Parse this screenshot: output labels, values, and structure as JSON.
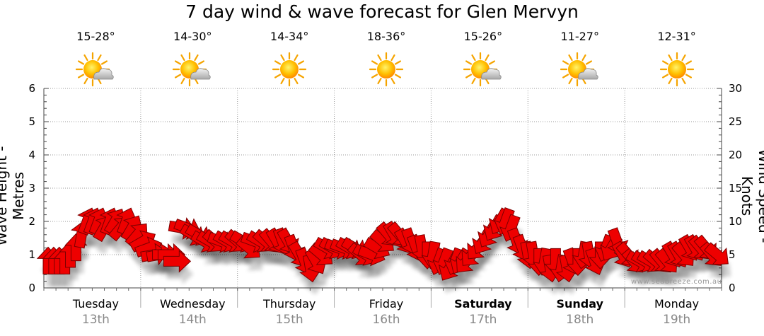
{
  "title": "7 day wind & wave forecast for Glen Mervyn",
  "watermark": "www.seabreeze.com.au",
  "axes": {
    "left_label": "Wave Height - Metres",
    "right_label": "Wind Speed - Knots",
    "left_ticks": [
      "0",
      "1",
      "2",
      "3",
      "4",
      "5",
      "6"
    ],
    "right_ticks": [
      "0",
      "5",
      "10",
      "15",
      "20",
      "25",
      "30"
    ]
  },
  "days": [
    {
      "name": "Tuesday",
      "date": "13th",
      "temp": "15-28°",
      "icon": "partly-cloudy-icon",
      "bold": false
    },
    {
      "name": "Wednesday",
      "date": "14th",
      "temp": "14-30°",
      "icon": "partly-cloudy-icon",
      "bold": false
    },
    {
      "name": "Thursday",
      "date": "15th",
      "temp": "14-34°",
      "icon": "sunny-icon",
      "bold": false
    },
    {
      "name": "Friday",
      "date": "16th",
      "temp": "18-36°",
      "icon": "sunny-icon",
      "bold": false
    },
    {
      "name": "Saturday",
      "date": "17th",
      "temp": "15-26°",
      "icon": "partly-cloudy-icon",
      "bold": true
    },
    {
      "name": "Sunday",
      "date": "18th",
      "temp": "11-27°",
      "icon": "partly-cloudy-icon",
      "bold": true
    },
    {
      "name": "Monday",
      "date": "19th",
      "temp": "12-31°",
      "icon": "sunny-icon",
      "bold": false
    }
  ],
  "colors": {
    "arrow": "#ee0000",
    "arrow_stroke": "#7a0000",
    "grid": "#999999",
    "axis": "#444444"
  },
  "chart_data": {
    "type": "line",
    "title": "7 day wind & wave forecast for Glen Mervyn",
    "ylabel": "Wave Height - Metres",
    "y2label": "Wind Speed - Knots",
    "ylim": [
      0,
      6
    ],
    "y2lim": [
      0,
      30
    ],
    "categories": [
      "Tuesday 13th",
      "Wednesday 14th",
      "Thursday 15th",
      "Friday 16th",
      "Saturday 17th",
      "Sunday 18th",
      "Monday 19th"
    ],
    "grid": true,
    "series": [
      {
        "wind_knots": [
          4,
          4,
          4,
          4,
          5,
          6,
          8,
          10,
          10,
          10,
          9,
          10,
          10,
          9,
          10,
          9,
          8,
          7,
          6,
          5,
          5,
          5,
          5,
          4,
          9,
          9,
          8,
          8,
          7,
          7,
          7,
          7,
          7,
          7,
          7,
          7,
          6,
          7,
          7,
          7,
          7,
          7,
          7,
          7,
          6,
          5,
          4,
          3,
          4,
          5,
          6,
          6,
          6,
          6,
          6,
          6,
          5,
          5,
          5,
          6,
          7,
          8,
          8,
          8,
          7,
          7,
          6,
          6,
          5,
          5,
          4,
          4,
          3,
          4,
          4,
          4,
          5,
          6,
          7,
          8,
          9,
          10,
          10,
          9,
          7,
          6,
          5,
          5,
          4,
          4,
          3,
          4,
          3,
          3,
          4,
          4,
          5,
          5,
          4,
          5,
          6,
          6,
          7,
          5,
          5,
          4,
          4,
          4,
          4,
          4,
          4,
          4,
          5,
          5,
          5,
          6,
          6,
          6,
          6,
          5,
          5
        ],
        "wind_direction_deg": [
          180,
          180,
          180,
          180,
          180,
          180,
          190,
          200,
          200,
          200,
          210,
          200,
          210,
          220,
          200,
          210,
          220,
          240,
          250,
          260,
          260,
          270,
          270,
          270,
          280,
          290,
          300,
          300,
          300,
          300,
          310,
          290,
          300,
          300,
          310,
          300,
          310,
          290,
          300,
          310,
          320,
          330,
          340,
          330,
          340,
          330,
          340,
          350,
          330,
          310,
          300,
          300,
          290,
          290,
          300,
          300,
          310,
          300,
          290,
          300,
          310,
          320,
          330,
          320,
          330,
          340,
          340,
          350,
          360,
          10,
          20,
          20,
          30,
          20,
          30,
          40,
          40,
          40,
          30,
          30,
          30,
          30,
          20,
          20,
          340,
          340,
          350,
          350,
          0,
          10,
          350,
          0,
          10,
          350,
          340,
          0,
          10,
          350,
          340,
          0,
          20,
          30,
          340,
          330,
          320,
          320,
          300,
          300,
          300,
          310,
          320,
          320,
          330,
          330,
          320,
          330,
          330,
          320,
          320,
          320,
          310
        ]
      }
    ]
  }
}
